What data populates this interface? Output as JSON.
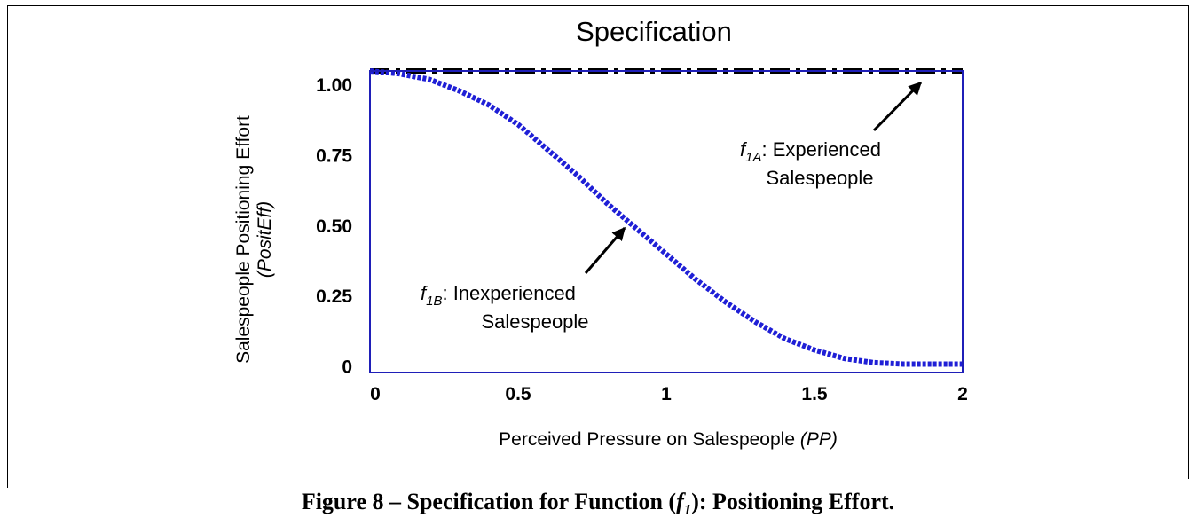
{
  "chart_data": {
    "type": "line",
    "title": "Specification",
    "x_label": {
      "text": "Perceived Pressure on Salespeople",
      "italic": "(PP)"
    },
    "y_label": {
      "text": "Salespeople Positioning Effort",
      "italic": "(PositEff)"
    },
    "x": [
      0,
      0.1,
      0.2,
      0.3,
      0.4,
      0.5,
      0.6,
      0.7,
      0.8,
      0.9,
      1.0,
      1.1,
      1.2,
      1.3,
      1.4,
      1.5,
      1.6,
      1.7,
      1.8,
      1.9,
      2.0
    ],
    "series": [
      {
        "color": "#000000",
        "style": "dashdot",
        "values": [
          1.05,
          1.05,
          1.05,
          1.05,
          1.05,
          1.05,
          1.05,
          1.05,
          1.05,
          1.05,
          1.05,
          1.05,
          1.05,
          1.05,
          1.05,
          1.05,
          1.05,
          1.05,
          1.05,
          1.05,
          1.05
        ]
      },
      {
        "color": "#1f1fd6",
        "style": "dotted",
        "values": [
          1.05,
          1.04,
          1.02,
          0.98,
          0.93,
          0.86,
          0.77,
          0.68,
          0.58,
          0.49,
          0.4,
          0.31,
          0.23,
          0.16,
          0.1,
          0.06,
          0.03,
          0.015,
          0.01,
          0.01,
          0.01
        ]
      }
    ],
    "xlim": [
      0,
      2
    ],
    "ylim": [
      -0.02,
      1.05
    ],
    "xticks": [
      0,
      0.5,
      1,
      1.5,
      2
    ],
    "yticks": [
      0,
      0.25,
      {
        "value": 0.5,
        "label": "0.50"
      },
      0.75,
      {
        "value": 1,
        "label": "1.00"
      }
    ],
    "frame_color": "#1f1fb8",
    "annotations": [
      {
        "symbol": "f",
        "subscript": "1A",
        "line1": ": Experienced",
        "line2": "Salespeople"
      },
      {
        "symbol": "f",
        "subscript": "1B",
        "line1": ": Inexperienced",
        "line2": "Salespeople"
      }
    ],
    "caption": {
      "before": "Figure 8 – Specification for Function (",
      "symbol": "f",
      "subscript": "1",
      "after": "): Positioning Effort."
    }
  }
}
